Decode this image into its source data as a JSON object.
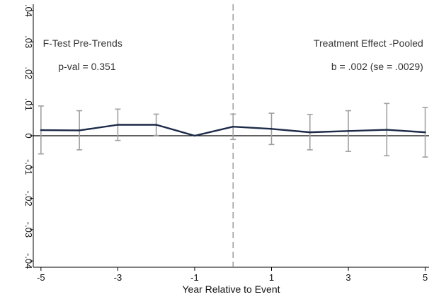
{
  "chart_data": {
    "type": "line",
    "title": "",
    "xlabel": "Year Relative to Event",
    "ylabel": "",
    "xlim": [
      -5.2,
      5.1
    ],
    "ylim": [
      -0.042,
      0.042
    ],
    "x_ticks": [
      -5,
      -3,
      -1,
      1,
      3,
      5
    ],
    "x_tick_labels": [
      "-5",
      "-3",
      "-1",
      "1",
      "3",
      "5"
    ],
    "y_ticks": [
      -0.04,
      -0.03,
      -0.02,
      -0.01,
      0,
      0.01,
      0.02,
      0.03,
      0.04
    ],
    "y_tick_labels": [
      "-.04",
      "-.03",
      "-.02",
      "-.01",
      "0",
      ".01",
      ".02",
      ".03",
      ".04"
    ],
    "grid": false,
    "legend": "none",
    "event_line_x": 0,
    "zero_line_y": 0,
    "series": [
      {
        "name": "",
        "color": "#1c2a48",
        "x": [
          -5,
          -4,
          -3,
          -2,
          -1,
          0,
          1,
          2,
          3,
          4,
          5
        ],
        "y": [
          0.0018,
          0.0017,
          0.0035,
          0.0035,
          0,
          0.0029,
          0.0022,
          0.0011,
          0.0015,
          0.0019,
          0.0011
        ],
        "ci_lower": [
          -0.0058,
          -0.0045,
          -0.0015,
          0.0001,
          null,
          -0.0012,
          -0.0028,
          -0.0045,
          -0.005,
          -0.0064,
          -0.0068
        ],
        "ci_upper": [
          0.0095,
          0.008,
          0.0085,
          0.0069,
          null,
          0.0069,
          0.0072,
          0.0068,
          0.008,
          0.0103,
          0.009
        ]
      }
    ],
    "annotations": [
      {
        "id": "pretrend-title",
        "text": "F-Test Pre-Trends",
        "x": -4.95,
        "y": 0.0285,
        "anchor": "start"
      },
      {
        "id": "pretrend-pval",
        "text": "p-val =    0.351",
        "x": -4.55,
        "y": 0.021,
        "anchor": "start"
      },
      {
        "id": "treat-title",
        "text": "Treatment Effect -Pooled",
        "x": 4.95,
        "y": 0.0285,
        "anchor": "end"
      },
      {
        "id": "treat-b",
        "text": "b = .002 (se = .0029)",
        "x": 4.95,
        "y": 0.021,
        "anchor": "end"
      }
    ],
    "colors": {
      "line": "#1c2a48",
      "error_bars": "#a0a0a0",
      "event_line": "#8c8c8c",
      "zero_line": "#000000",
      "axis": "#000000"
    }
  }
}
